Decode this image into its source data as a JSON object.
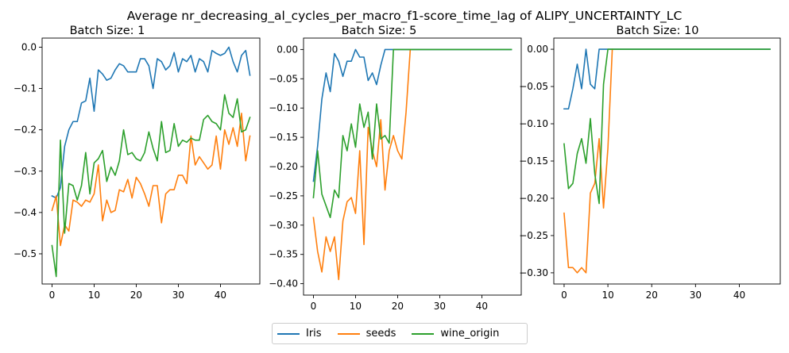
{
  "figure": {
    "suptitle": "Average nr_decreasing_al_cycles_per_macro_f1-score_time_lag of ALIPY_UNCERTAINTY_LC"
  },
  "colors": {
    "Iris": "#1f77b4",
    "seeds": "#ff7f0e",
    "wine_origin": "#2ca02c"
  },
  "legend": {
    "entries": [
      {
        "label": "Iris",
        "color": "#1f77b4"
      },
      {
        "label": "seeds",
        "color": "#ff7f0e"
      },
      {
        "label": "wine_origin",
        "color": "#2ca02c"
      }
    ],
    "placement": "bottom-center"
  },
  "chart_data": [
    {
      "type": "line",
      "title": "Batch Size: 1",
      "xlim": [
        -2.35,
        49.35
      ],
      "ylim": [
        -0.573,
        0.022
      ],
      "xticks": [
        0,
        10,
        20,
        30,
        40
      ],
      "yticks": [
        0.0,
        -0.1,
        -0.2,
        -0.3,
        -0.4,
        -0.5
      ],
      "ytick_labels": [
        "0.0",
        "−0.1",
        "−0.2",
        "−0.3",
        "−0.4",
        "−0.5"
      ],
      "series": [
        {
          "name": "Iris",
          "x": [
            0,
            1,
            2,
            3,
            4,
            5,
            6,
            7,
            8,
            9,
            10,
            11,
            12,
            13,
            14,
            15,
            16,
            17,
            18,
            19,
            20,
            21,
            22,
            23,
            24,
            25,
            26,
            27,
            28,
            29,
            30,
            31,
            32,
            33,
            34,
            35,
            36,
            37,
            38,
            39,
            40,
            41,
            42,
            43,
            44,
            45,
            46,
            47
          ],
          "values": [
            -0.36,
            -0.365,
            -0.34,
            -0.24,
            -0.2,
            -0.18,
            -0.18,
            -0.135,
            -0.13,
            -0.075,
            -0.155,
            -0.055,
            -0.065,
            -0.08,
            -0.075,
            -0.055,
            -0.04,
            -0.045,
            -0.06,
            -0.06,
            -0.06,
            -0.028,
            -0.028,
            -0.045,
            -0.1,
            -0.028,
            -0.035,
            -0.055,
            -0.045,
            -0.013,
            -0.06,
            -0.028,
            -0.035,
            -0.02,
            -0.06,
            -0.028,
            -0.035,
            -0.06,
            -0.008,
            -0.015,
            -0.02,
            -0.015,
            0.0,
            -0.035,
            -0.06,
            -0.02,
            -0.008,
            -0.068
          ]
        },
        {
          "name": "seeds",
          "x": [
            0,
            1,
            2,
            3,
            4,
            5,
            6,
            7,
            8,
            9,
            10,
            11,
            12,
            13,
            14,
            15,
            16,
            17,
            18,
            19,
            20,
            21,
            22,
            23,
            24,
            25,
            26,
            27,
            28,
            29,
            30,
            31,
            32,
            33,
            34,
            35,
            36,
            37,
            38,
            39,
            40,
            41,
            42,
            43,
            44,
            45,
            46,
            47
          ],
          "values": [
            -0.395,
            -0.36,
            -0.48,
            -0.43,
            -0.445,
            -0.37,
            -0.375,
            -0.385,
            -0.37,
            -0.375,
            -0.355,
            -0.285,
            -0.42,
            -0.37,
            -0.4,
            -0.395,
            -0.345,
            -0.35,
            -0.32,
            -0.365,
            -0.315,
            -0.33,
            -0.355,
            -0.385,
            -0.335,
            -0.335,
            -0.425,
            -0.355,
            -0.345,
            -0.345,
            -0.31,
            -0.31,
            -0.33,
            -0.215,
            -0.285,
            -0.265,
            -0.28,
            -0.295,
            -0.285,
            -0.215,
            -0.295,
            -0.2,
            -0.235,
            -0.195,
            -0.24,
            -0.16,
            -0.275,
            -0.215
          ]
        },
        {
          "name": "wine_origin",
          "x": [
            0,
            1,
            2,
            3,
            4,
            5,
            6,
            7,
            8,
            9,
            10,
            11,
            12,
            13,
            14,
            15,
            16,
            17,
            18,
            19,
            20,
            21,
            22,
            23,
            24,
            25,
            26,
            27,
            28,
            29,
            30,
            31,
            32,
            33,
            34,
            35,
            36,
            37,
            38,
            39,
            40,
            41,
            42,
            43,
            44,
            45,
            46,
            47
          ],
          "values": [
            -0.48,
            -0.555,
            -0.225,
            -0.45,
            -0.33,
            -0.335,
            -0.37,
            -0.335,
            -0.255,
            -0.355,
            -0.28,
            -0.27,
            -0.25,
            -0.325,
            -0.29,
            -0.31,
            -0.275,
            -0.2,
            -0.26,
            -0.255,
            -0.27,
            -0.275,
            -0.255,
            -0.205,
            -0.245,
            -0.275,
            -0.18,
            -0.255,
            -0.25,
            -0.185,
            -0.24,
            -0.225,
            -0.23,
            -0.22,
            -0.225,
            -0.225,
            -0.175,
            -0.165,
            -0.18,
            -0.185,
            -0.2,
            -0.115,
            -0.16,
            -0.17,
            -0.125,
            -0.205,
            -0.2,
            -0.17
          ]
        }
      ]
    },
    {
      "type": "line",
      "title": "Batch Size: 5",
      "xlim": [
        -2.35,
        49.35
      ],
      "ylim": [
        -0.4195,
        0.0195
      ],
      "xticks": [
        0,
        10,
        20,
        30,
        40
      ],
      "yticks": [
        0.0,
        -0.05,
        -0.1,
        -0.15,
        -0.2,
        -0.25,
        -0.3,
        -0.35,
        -0.4
      ],
      "ytick_labels": [
        "0.00",
        "−0.05",
        "−0.10",
        "−0.15",
        "−0.20",
        "−0.25",
        "−0.30",
        "−0.35",
        "−0.40"
      ],
      "series": [
        {
          "name": "Iris",
          "x": [
            0,
            1,
            2,
            3,
            4,
            5,
            6,
            7,
            8,
            9,
            10,
            11,
            12,
            13,
            14,
            15,
            16,
            17,
            18,
            19,
            20,
            21,
            22,
            23,
            24,
            25,
            26,
            27,
            28,
            29,
            30,
            31,
            32,
            33,
            34,
            35,
            36,
            37,
            38,
            39,
            40,
            41,
            42,
            43,
            44,
            45,
            46,
            47
          ],
          "values": [
            -0.225,
            -0.165,
            -0.085,
            -0.04,
            -0.072,
            -0.007,
            -0.02,
            -0.046,
            -0.02,
            -0.02,
            0.0,
            -0.013,
            -0.013,
            -0.053,
            -0.04,
            -0.06,
            -0.027,
            0.0,
            0.0,
            0.0,
            0.0,
            0.0,
            0.0,
            0.0,
            0.0,
            0.0,
            0.0,
            0.0,
            0.0,
            0.0,
            0.0,
            0.0,
            0.0,
            0.0,
            0.0,
            0.0,
            0.0,
            0.0,
            0.0,
            0.0,
            0.0,
            0.0,
            0.0,
            0.0,
            0.0,
            0.0,
            0.0,
            0.0
          ]
        },
        {
          "name": "seeds",
          "x": [
            0,
            1,
            2,
            3,
            4,
            5,
            6,
            7,
            8,
            9,
            10,
            11,
            12,
            13,
            14,
            15,
            16,
            17,
            18,
            19,
            20,
            21,
            22,
            23
          ],
          "values": [
            -0.287,
            -0.345,
            -0.38,
            -0.32,
            -0.345,
            -0.32,
            -0.393,
            -0.293,
            -0.26,
            -0.253,
            -0.28,
            -0.173,
            -0.333,
            -0.133,
            -0.173,
            -0.2,
            -0.12,
            -0.24,
            -0.173,
            -0.147,
            -0.173,
            -0.187,
            -0.107,
            0.0
          ]
        },
        {
          "name": "wine_origin",
          "x": [
            0,
            1,
            2,
            3,
            4,
            5,
            6,
            7,
            8,
            9,
            10,
            11,
            12,
            13,
            14,
            15,
            16,
            17,
            18,
            19,
            20,
            21,
            22,
            23,
            24,
            25,
            26,
            27,
            28,
            29,
            30,
            31,
            32,
            33,
            34,
            35,
            36,
            37,
            38,
            39,
            40,
            41,
            42,
            43,
            44,
            45,
            46,
            47
          ],
          "values": [
            -0.253,
            -0.173,
            -0.247,
            -0.267,
            -0.287,
            -0.24,
            -0.253,
            -0.147,
            -0.173,
            -0.127,
            -0.167,
            -0.093,
            -0.133,
            -0.107,
            -0.187,
            -0.093,
            -0.153,
            -0.147,
            -0.16,
            0.0,
            0.0,
            0.0,
            0.0,
            0.0,
            0.0,
            0.0,
            0.0,
            0.0,
            0.0,
            0.0,
            0.0,
            0.0,
            0.0,
            0.0,
            0.0,
            0.0,
            0.0,
            0.0,
            0.0,
            0.0,
            0.0,
            0.0,
            0.0,
            0.0,
            0.0,
            0.0,
            0.0,
            0.0
          ]
        }
      ]
    },
    {
      "type": "line",
      "title": "Batch Size: 10",
      "xlim": [
        -2.35,
        49.35
      ],
      "ylim": [
        -0.315,
        0.015
      ],
      "xticks": [
        0,
        10,
        20,
        30,
        40
      ],
      "yticks": [
        0.0,
        -0.05,
        -0.1,
        -0.15,
        -0.2,
        -0.25,
        -0.3
      ],
      "ytick_labels": [
        "0.00",
        "−0.05",
        "−0.10",
        "−0.15",
        "−0.20",
        "−0.25",
        "−0.30"
      ],
      "series": [
        {
          "name": "Iris",
          "x": [
            0,
            1,
            2,
            3,
            4,
            5,
            6,
            7,
            8,
            9,
            10,
            11,
            12,
            13,
            14,
            15,
            16,
            17,
            18,
            19,
            20,
            21,
            22,
            23,
            24,
            25,
            26,
            27,
            28,
            29,
            30,
            31,
            32,
            33,
            34,
            35,
            36,
            37,
            38,
            39,
            40,
            41,
            42,
            43,
            44,
            45,
            46,
            47
          ],
          "values": [
            -0.08,
            -0.08,
            -0.053,
            -0.02,
            -0.053,
            0.0,
            -0.047,
            -0.053,
            0.0,
            0.0,
            0.0,
            0.0,
            0.0,
            0.0,
            0.0,
            0.0,
            0.0,
            0.0,
            0.0,
            0.0,
            0.0,
            0.0,
            0.0,
            0.0,
            0.0,
            0.0,
            0.0,
            0.0,
            0.0,
            0.0,
            0.0,
            0.0,
            0.0,
            0.0,
            0.0,
            0.0,
            0.0,
            0.0,
            0.0,
            0.0,
            0.0,
            0.0,
            0.0,
            0.0,
            0.0,
            0.0,
            0.0,
            0.0
          ]
        },
        {
          "name": "seeds",
          "x": [
            0,
            1,
            2,
            3,
            4,
            5,
            6,
            7,
            8,
            9,
            10,
            11
          ],
          "values": [
            -0.22,
            -0.293,
            -0.293,
            -0.3,
            -0.293,
            -0.3,
            -0.193,
            -0.18,
            -0.12,
            -0.213,
            -0.133,
            0.0
          ]
        },
        {
          "name": "wine_origin",
          "x": [
            0,
            1,
            2,
            3,
            4,
            5,
            6,
            7,
            8,
            9,
            10,
            11,
            12,
            13,
            14,
            15,
            16,
            17,
            18,
            19,
            20,
            21,
            22,
            23,
            24,
            25,
            26,
            27,
            28,
            29,
            30,
            31,
            32,
            33,
            34,
            35,
            36,
            37,
            38,
            39,
            40,
            41,
            42,
            43,
            44,
            45,
            46,
            47
          ],
          "values": [
            -0.127,
            -0.187,
            -0.18,
            -0.14,
            -0.12,
            -0.153,
            -0.093,
            -0.167,
            -0.207,
            -0.047,
            0.0,
            0.0,
            0.0,
            0.0,
            0.0,
            0.0,
            0.0,
            0.0,
            0.0,
            0.0,
            0.0,
            0.0,
            0.0,
            0.0,
            0.0,
            0.0,
            0.0,
            0.0,
            0.0,
            0.0,
            0.0,
            0.0,
            0.0,
            0.0,
            0.0,
            0.0,
            0.0,
            0.0,
            0.0,
            0.0,
            0.0,
            0.0,
            0.0,
            0.0,
            0.0,
            0.0,
            0.0,
            0.0
          ]
        }
      ]
    }
  ]
}
